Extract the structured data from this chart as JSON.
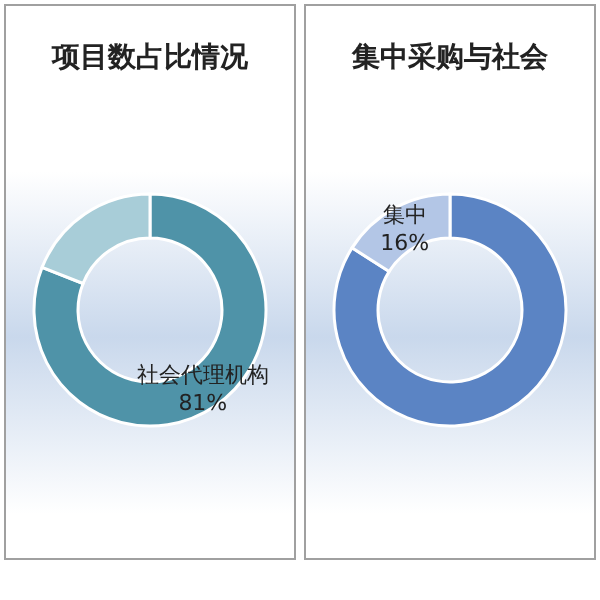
{
  "chart_data": [
    {
      "type": "donut",
      "title": "项目数占比情况",
      "categories": [
        "社会代理机构",
        null
      ],
      "values": [
        81,
        19
      ],
      "colors": [
        "#4f93a8",
        "#a8cdd8"
      ],
      "value_labels": [
        "81%",
        null
      ]
    },
    {
      "type": "donut",
      "title": "集中采购与社会",
      "categories": [
        null,
        "集中"
      ],
      "values": [
        84,
        16
      ],
      "colors": [
        "#5b84c4",
        "#b3c6e6"
      ],
      "value_labels": [
        null,
        "16%"
      ]
    }
  ]
}
